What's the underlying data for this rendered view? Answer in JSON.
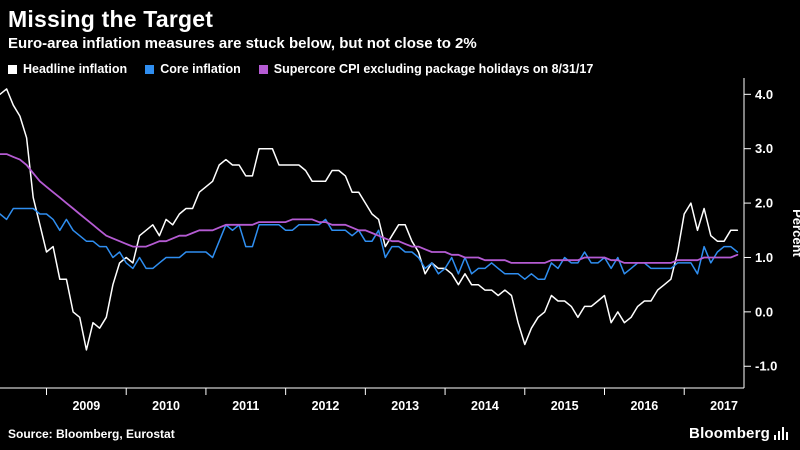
{
  "footer": {
    "source": "Source: Bloomberg, Eurostat",
    "brand": "Bloomberg"
  },
  "colors": {
    "background": "#000000",
    "text": "#ffffff",
    "axis": "#ffffff"
  },
  "chart_data": {
    "type": "line",
    "title": "Missing the Target",
    "subtitle": "Euro-area inflation measures are stuck below, but not close to 2%",
    "xlabel": "",
    "ylabel": "Percent",
    "grid": false,
    "legend_position": "top",
    "xlim": [
      2008.4167,
      2017.75
    ],
    "ylim": [
      -1.4,
      4.3
    ],
    "yticks": [
      4.0,
      3.0,
      2.0,
      1.0,
      0.0,
      -1.0
    ],
    "xticks": [
      2009,
      2010,
      2011,
      2012,
      2013,
      2014,
      2015,
      2016,
      2017
    ],
    "xtick_labels": [
      "2009",
      "2010",
      "2011",
      "2012",
      "2013",
      "2014",
      "2015",
      "2016",
      "2017"
    ],
    "x_start": 2008.4167,
    "x_step_years": 0.0833333,
    "x_unit": "monthly, Jun 2008 - Sep 2017",
    "series": [
      {
        "name": "Headline inflation",
        "color": "#ffffff",
        "width": 1.5,
        "values": [
          4.0,
          4.1,
          3.8,
          3.6,
          3.2,
          2.1,
          1.6,
          1.1,
          1.2,
          0.6,
          0.6,
          0.0,
          -0.1,
          -0.7,
          -0.2,
          -0.3,
          -0.1,
          0.5,
          0.9,
          1.0,
          0.9,
          1.4,
          1.5,
          1.6,
          1.4,
          1.7,
          1.6,
          1.8,
          1.9,
          1.9,
          2.2,
          2.3,
          2.4,
          2.7,
          2.8,
          2.7,
          2.7,
          2.5,
          2.5,
          3.0,
          3.0,
          3.0,
          2.7,
          2.7,
          2.7,
          2.7,
          2.6,
          2.4,
          2.4,
          2.4,
          2.6,
          2.6,
          2.5,
          2.2,
          2.2,
          2.0,
          1.8,
          1.7,
          1.2,
          1.4,
          1.6,
          1.6,
          1.3,
          1.1,
          0.7,
          0.9,
          0.8,
          0.8,
          0.7,
          0.5,
          0.7,
          0.5,
          0.5,
          0.4,
          0.4,
          0.3,
          0.4,
          0.3,
          -0.2,
          -0.6,
          -0.3,
          -0.1,
          0.0,
          0.3,
          0.2,
          0.2,
          0.1,
          -0.1,
          0.1,
          0.1,
          0.2,
          0.3,
          -0.2,
          0.0,
          -0.2,
          -0.1,
          0.1,
          0.2,
          0.2,
          0.4,
          0.5,
          0.6,
          1.1,
          1.8,
          2.0,
          1.5,
          1.9,
          1.4,
          1.3,
          1.3,
          1.5,
          1.5
        ]
      },
      {
        "name": "Core inflation",
        "color": "#2f8ef0",
        "width": 1.5,
        "values": [
          1.8,
          1.7,
          1.9,
          1.9,
          1.9,
          1.9,
          1.8,
          1.8,
          1.7,
          1.5,
          1.7,
          1.5,
          1.4,
          1.3,
          1.3,
          1.2,
          1.2,
          1.0,
          1.1,
          0.9,
          0.8,
          1.0,
          0.8,
          0.8,
          0.9,
          1.0,
          1.0,
          1.0,
          1.1,
          1.1,
          1.1,
          1.1,
          1.0,
          1.3,
          1.6,
          1.5,
          1.6,
          1.2,
          1.2,
          1.6,
          1.6,
          1.6,
          1.6,
          1.5,
          1.5,
          1.6,
          1.6,
          1.6,
          1.6,
          1.7,
          1.5,
          1.5,
          1.5,
          1.4,
          1.5,
          1.3,
          1.3,
          1.5,
          1.0,
          1.2,
          1.2,
          1.1,
          1.1,
          1.0,
          0.8,
          0.9,
          0.7,
          0.8,
          1.0,
          0.7,
          1.0,
          0.7,
          0.8,
          0.8,
          0.9,
          0.8,
          0.7,
          0.7,
          0.7,
          0.6,
          0.7,
          0.6,
          0.6,
          0.9,
          0.8,
          1.0,
          0.9,
          0.9,
          1.1,
          0.9,
          0.9,
          1.0,
          0.8,
          1.0,
          0.7,
          0.8,
          0.9,
          0.9,
          0.8,
          0.8,
          0.8,
          0.8,
          0.9,
          0.9,
          0.9,
          0.7,
          1.2,
          0.9,
          1.1,
          1.2,
          1.2,
          1.1
        ]
      },
      {
        "name": "Supercore CPI excluding package holidays on 8/31/17",
        "color": "#b55bd3",
        "width": 1.8,
        "values": [
          2.9,
          2.9,
          2.85,
          2.8,
          2.7,
          2.55,
          2.4,
          2.3,
          2.2,
          2.1,
          2.0,
          1.9,
          1.8,
          1.7,
          1.6,
          1.5,
          1.4,
          1.35,
          1.3,
          1.25,
          1.2,
          1.2,
          1.2,
          1.25,
          1.3,
          1.3,
          1.35,
          1.4,
          1.4,
          1.45,
          1.5,
          1.5,
          1.5,
          1.55,
          1.6,
          1.6,
          1.6,
          1.6,
          1.6,
          1.65,
          1.65,
          1.65,
          1.65,
          1.65,
          1.7,
          1.7,
          1.7,
          1.7,
          1.65,
          1.65,
          1.6,
          1.6,
          1.6,
          1.55,
          1.5,
          1.5,
          1.45,
          1.4,
          1.35,
          1.3,
          1.3,
          1.25,
          1.2,
          1.2,
          1.15,
          1.1,
          1.1,
          1.1,
          1.05,
          1.05,
          1.0,
          1.0,
          1.0,
          0.95,
          0.95,
          0.95,
          0.95,
          0.9,
          0.9,
          0.9,
          0.9,
          0.9,
          0.9,
          0.95,
          0.95,
          0.95,
          0.95,
          0.95,
          1.0,
          1.0,
          1.0,
          1.0,
          0.95,
          0.95,
          0.9,
          0.9,
          0.9,
          0.9,
          0.9,
          0.9,
          0.9,
          0.9,
          0.95,
          0.95,
          0.95,
          0.95,
          1.0,
          1.0,
          1.0,
          1.0,
          1.0,
          1.05
        ]
      }
    ]
  }
}
